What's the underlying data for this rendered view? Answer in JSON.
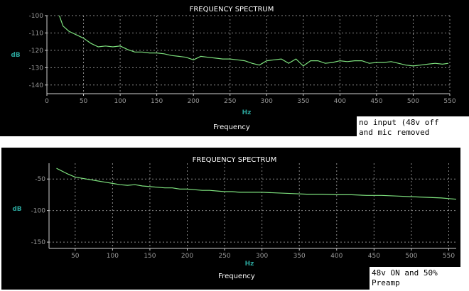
{
  "chart_data": [
    {
      "type": "line",
      "title": "FREQUENCY SPECTRUM",
      "xlabel": "Frequency",
      "xunit": "Hz",
      "ylabel": "dB",
      "xlim": [
        0,
        550
      ],
      "ylim": [
        -145,
        -100
      ],
      "grid": true,
      "xticks": [
        0,
        50,
        100,
        150,
        200,
        250,
        300,
        350,
        400,
        450,
        500,
        550
      ],
      "yticks": [
        -100,
        -110,
        -120,
        -130,
        -140
      ],
      "series": [
        {
          "color": "#7de07d",
          "x": [
            17,
            22,
            30,
            40,
            50,
            60,
            70,
            80,
            90,
            100,
            110,
            120,
            130,
            140,
            150,
            160,
            170,
            180,
            190,
            200,
            210,
            220,
            230,
            240,
            250,
            260,
            270,
            280,
            290,
            300,
            310,
            320,
            330,
            340,
            350,
            360,
            370,
            380,
            390,
            400,
            410,
            420,
            430,
            440,
            450,
            460,
            470,
            480,
            490,
            500,
            510,
            520,
            530,
            540,
            548
          ],
          "y": [
            -100,
            -106,
            -109,
            -111,
            -113,
            -116,
            -118,
            -117.5,
            -118,
            -117.5,
            -119.5,
            -121,
            -121,
            -121.5,
            -121.5,
            -122,
            -123,
            -123.5,
            -124,
            -125.5,
            -123.5,
            -124,
            -124.5,
            -125,
            -125,
            -125.5,
            -126,
            -127.5,
            -128.5,
            -126,
            -125.5,
            -125,
            -127.5,
            -125,
            -129,
            -126,
            -126,
            -127.5,
            -127,
            -126,
            -126.5,
            -126,
            -126,
            -127.5,
            -127,
            -127,
            -126.5,
            -127.5,
            -128.5,
            -129,
            -128.5,
            -128,
            -127.5,
            -128,
            -127.5
          ]
        }
      ]
    },
    {
      "type": "line",
      "title": "FREQUENCY SPECTRUM",
      "xlabel": "Frequency",
      "xunit": "Hz",
      "ylabel": "dB",
      "xlim": [
        15,
        560
      ],
      "ylim": [
        -160,
        -25
      ],
      "grid": true,
      "xticks": [
        50,
        100,
        150,
        200,
        250,
        300,
        350,
        400,
        450,
        500,
        550
      ],
      "yticks": [
        -50,
        -100,
        -150
      ],
      "series": [
        {
          "color": "#7de07d",
          "x": [
            25,
            30,
            40,
            50,
            60,
            70,
            80,
            90,
            100,
            110,
            120,
            130,
            140,
            150,
            160,
            170,
            180,
            190,
            200,
            210,
            220,
            230,
            240,
            250,
            260,
            270,
            280,
            290,
            300,
            320,
            340,
            360,
            380,
            400,
            420,
            440,
            460,
            480,
            500,
            520,
            540,
            560
          ],
          "y": [
            -33,
            -36,
            -42,
            -47,
            -49,
            -51,
            -53,
            -55,
            -57,
            -59,
            -60,
            -59,
            -61,
            -62,
            -63,
            -64,
            -64,
            -66,
            -66,
            -67,
            -68,
            -68,
            -69,
            -70,
            -70,
            -71,
            -71,
            -71,
            -71,
            -72,
            -73,
            -74,
            -74,
            -75,
            -75,
            -76,
            -76,
            -77,
            -78,
            -79,
            -80,
            -82
          ]
        }
      ]
    }
  ],
  "notes": [
    {
      "lines": [
        "no input (48v off",
        "and mic removed"
      ]
    },
    {
      "lines": [
        "48v ON and 50%",
        "Preamp"
      ]
    }
  ]
}
